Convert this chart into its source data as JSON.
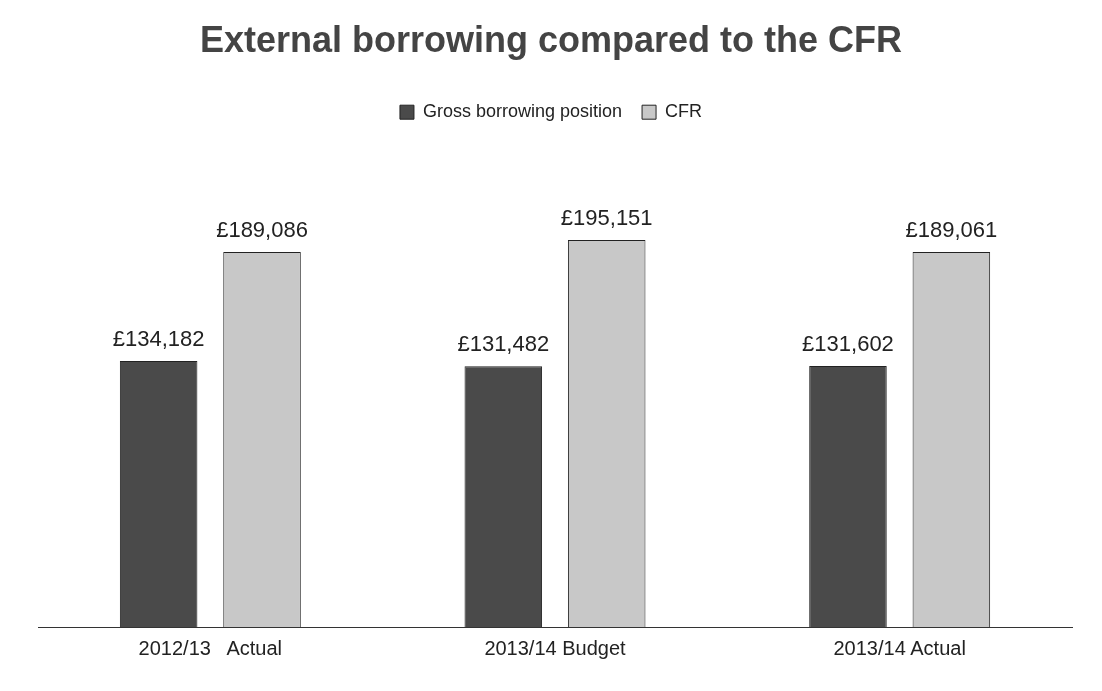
{
  "chart_data": {
    "type": "bar",
    "title": "External borrowing compared to the CFR",
    "categories": [
      "2012/13   Actual",
      "2013/14 Budget",
      "2013/14 Actual"
    ],
    "series": [
      {
        "name": "Gross borrowing position",
        "color": "#4a4a4a",
        "values": [
          134182,
          131482,
          131602
        ],
        "value_labels": [
          "£134,182",
          "£131,482",
          "£131,602"
        ]
      },
      {
        "name": "CFR",
        "color": "#c8c8c8",
        "values": [
          189086,
          195151,
          189061
        ],
        "value_labels": [
          "£189,086",
          "£195,151",
          "£189,061"
        ]
      }
    ],
    "relative": false,
    "legend": "top",
    "grid": false
  }
}
